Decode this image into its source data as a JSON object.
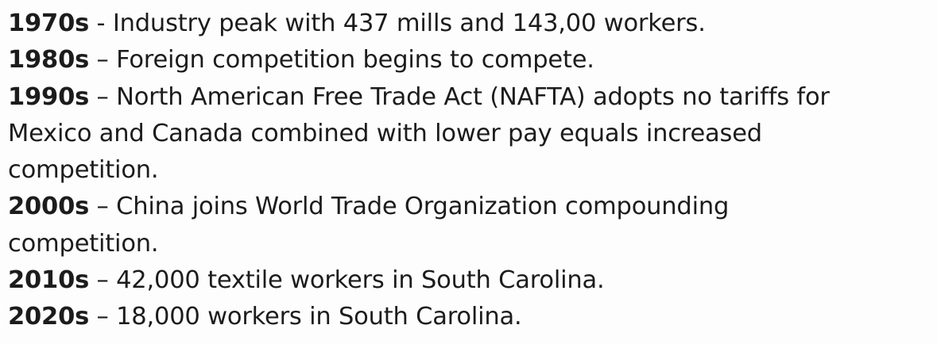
{
  "timeline": {
    "items": [
      {
        "decade": "1970s",
        "lines": [
          "- Industry peak with 437 mills and 143,00 workers."
        ]
      },
      {
        "decade": "1980s",
        "lines": [
          "– Foreign competition begins to compete."
        ]
      },
      {
        "decade": "1990s",
        "lines": [
          "– North American Free Trade Act (NAFTA) adopts no tariffs for",
          "Mexico and Canada combined with lower pay equals increased",
          "competition."
        ]
      },
      {
        "decade": "2000s",
        "lines": [
          "– China joins World Trade Organization compounding",
          "competition."
        ]
      },
      {
        "decade": "2010s",
        "lines": [
          "– 42,000 textile workers in South Carolina."
        ]
      },
      {
        "decade": "2020s",
        "lines": [
          "– 18,000 workers in South Carolina."
        ]
      }
    ]
  }
}
